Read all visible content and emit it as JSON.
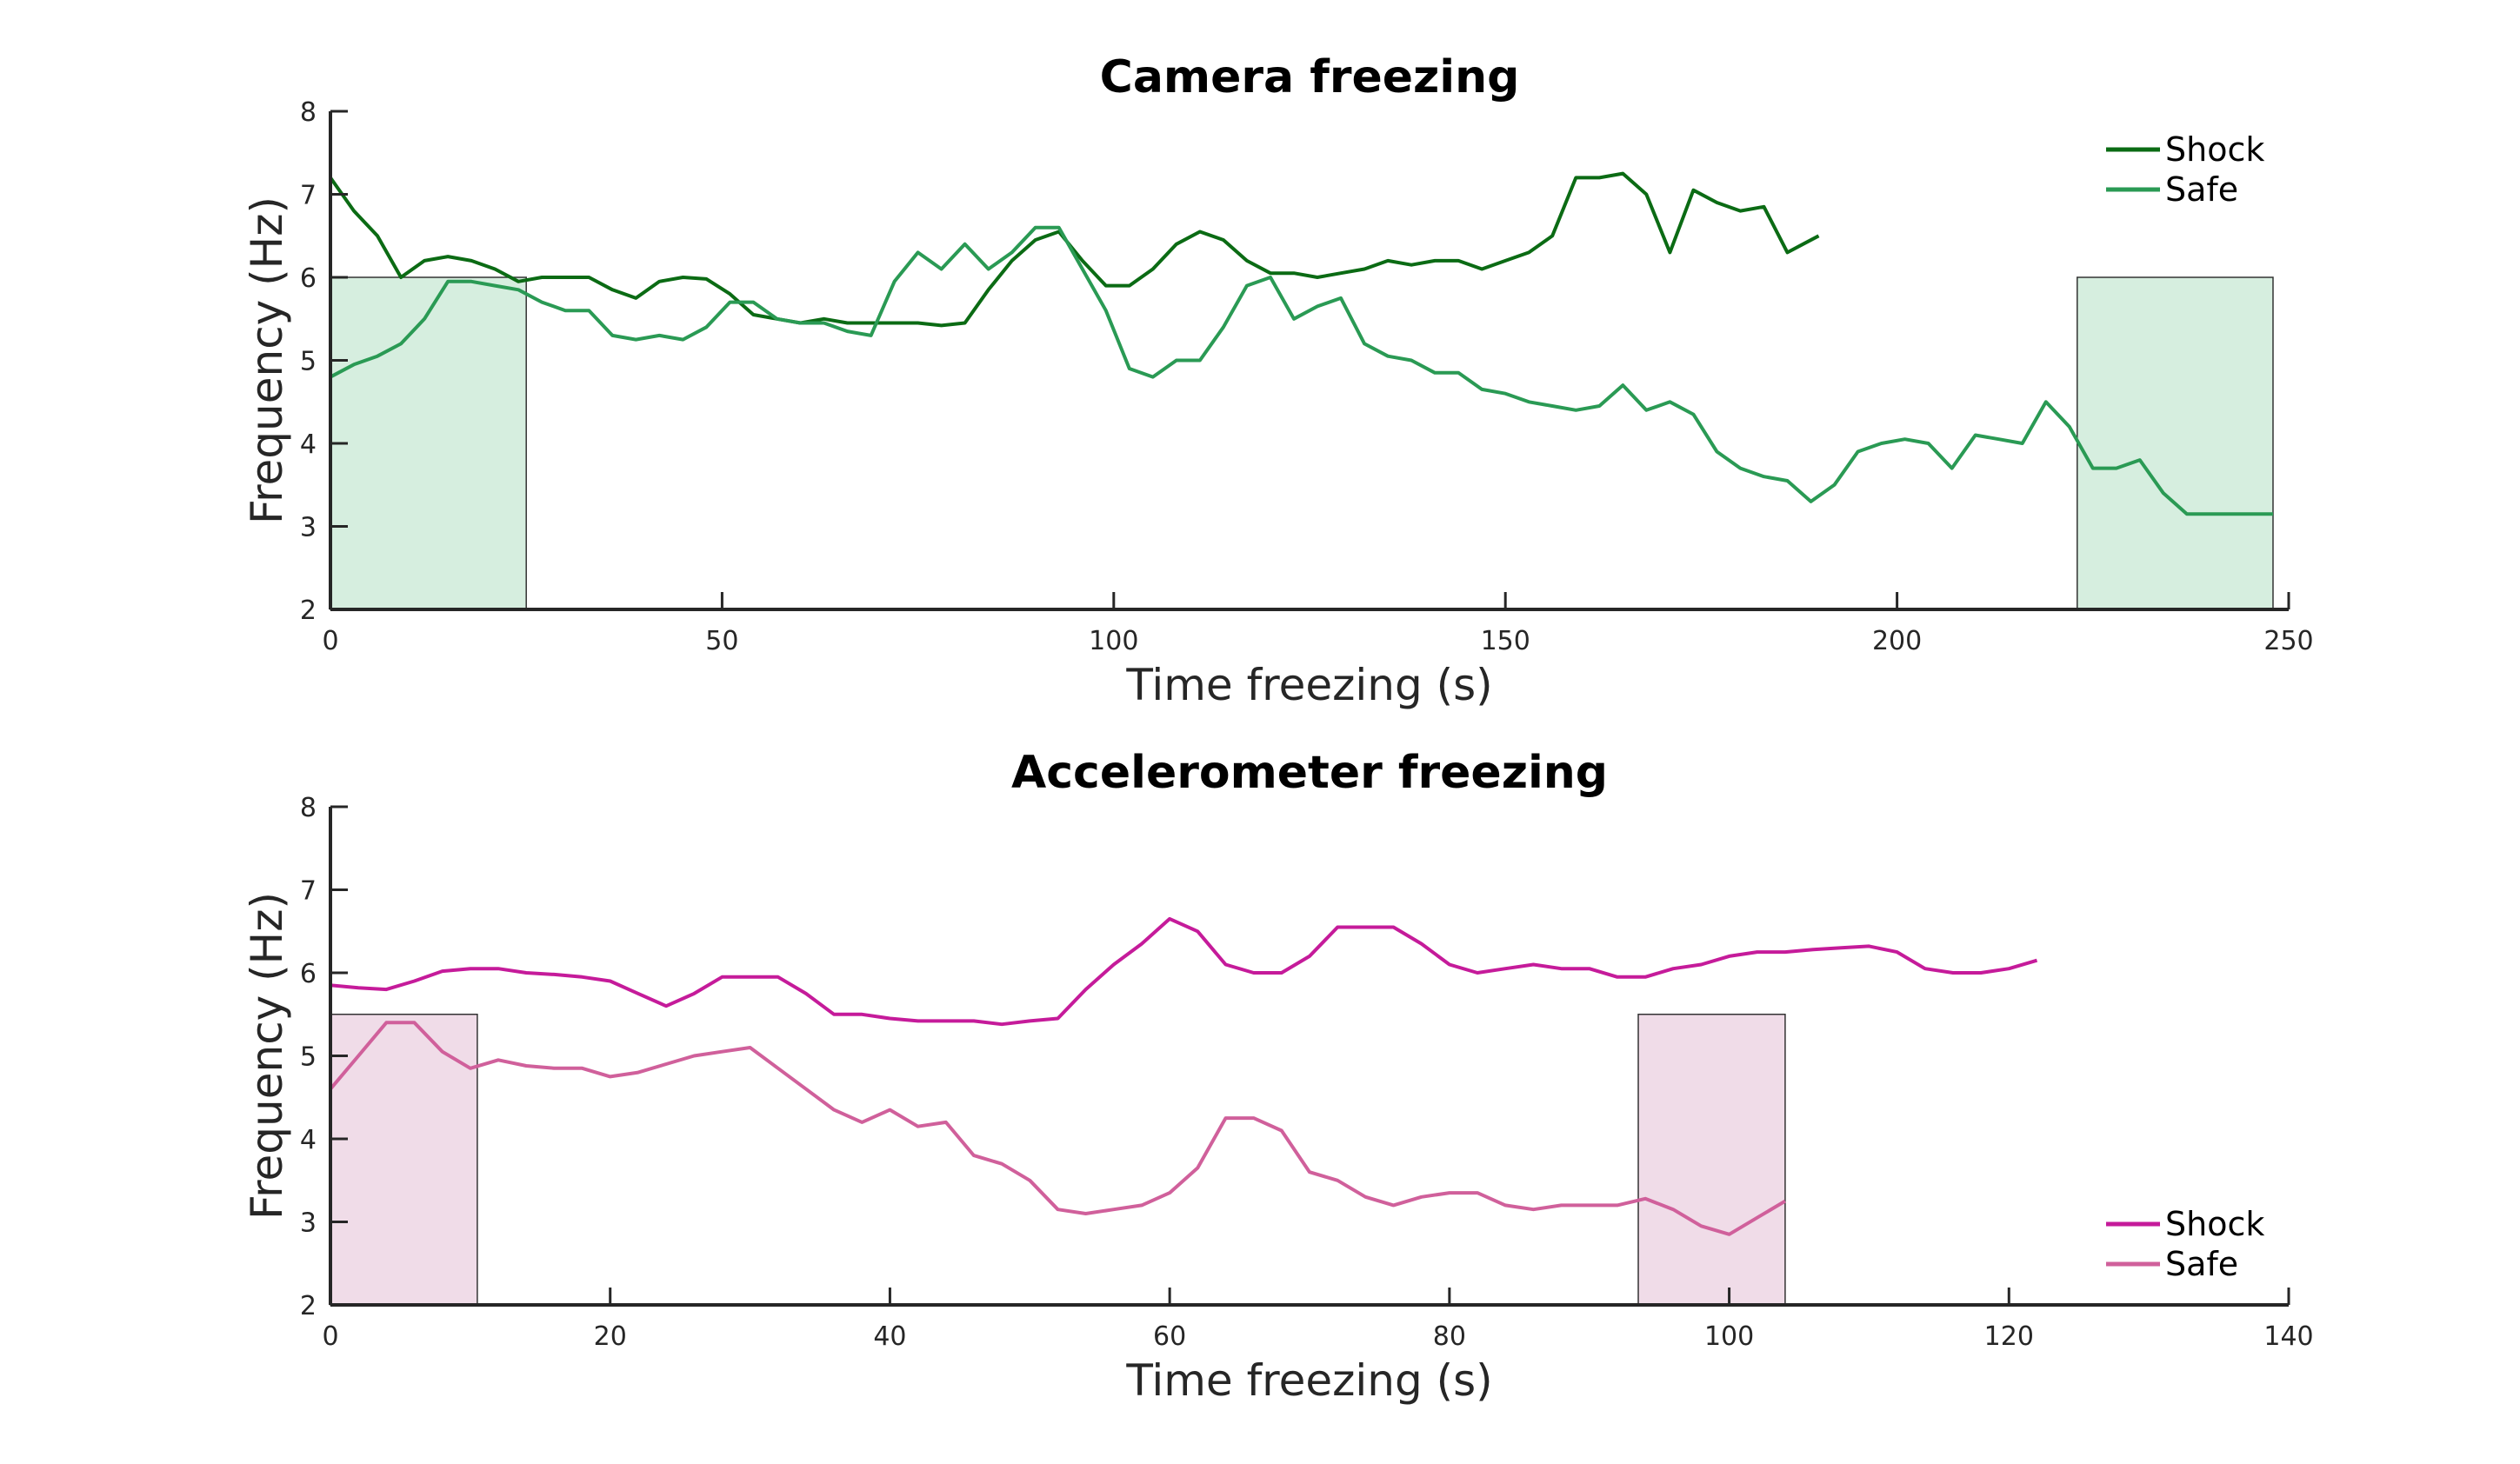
{
  "chart_data": [
    {
      "type": "line",
      "title": "Camera freezing",
      "xlabel": "Time freezing (s)",
      "ylabel": "Frequency (Hz)",
      "xlim": [
        0,
        250
      ],
      "ylim": [
        2,
        8
      ],
      "xticks": [
        0,
        50,
        100,
        150,
        200,
        250
      ],
      "yticks": [
        2,
        3,
        4,
        5,
        6,
        7,
        8
      ],
      "legend_position": "top-right",
      "grid": false,
      "shaded_regions": [
        {
          "x0": 0,
          "x1": 25,
          "y0": 2,
          "y1": 6,
          "color": "#d6eedf"
        },
        {
          "x0": 223,
          "x1": 248,
          "y0": 2,
          "y1": 6,
          "color": "#d6eedf"
        }
      ],
      "series": [
        {
          "name": "Shock",
          "color": "#0b6b14",
          "x": [
            0,
            3,
            6,
            9,
            12,
            15,
            18,
            21,
            24,
            27,
            30,
            33,
            36,
            39,
            42,
            45,
            48,
            51,
            54,
            57,
            60,
            63,
            66,
            69,
            72,
            75,
            78,
            81,
            84,
            87,
            90,
            93,
            96,
            99,
            102,
            105,
            108,
            111,
            114,
            117,
            120,
            123,
            126,
            129,
            132,
            135,
            138,
            141,
            144,
            147,
            150,
            153,
            156,
            159,
            162,
            165,
            168,
            171,
            174,
            177,
            180,
            183,
            186,
            188,
            190
          ],
          "y": [
            7.2,
            6.8,
            6.5,
            6.0,
            6.2,
            6.25,
            6.2,
            6.1,
            5.95,
            6.0,
            6.0,
            6.0,
            5.85,
            5.75,
            5.95,
            6.0,
            5.98,
            5.8,
            5.55,
            5.5,
            5.45,
            5.5,
            5.45,
            5.45,
            5.45,
            5.45,
            5.42,
            5.45,
            5.85,
            6.2,
            6.45,
            6.55,
            6.2,
            5.9,
            5.9,
            6.1,
            6.4,
            6.55,
            6.45,
            6.2,
            6.05,
            6.05,
            6.0,
            6.05,
            6.1,
            6.2,
            6.15,
            6.2,
            6.2,
            6.1,
            6.2,
            6.3,
            6.5,
            7.2,
            7.2,
            7.25,
            7.0,
            6.3,
            7.05,
            6.9,
            6.8,
            6.85,
            6.3,
            6.4,
            6.5
          ]
        },
        {
          "name": "Safe",
          "color": "#2a9a54",
          "x": [
            0,
            3,
            6,
            9,
            12,
            15,
            18,
            21,
            24,
            27,
            30,
            33,
            36,
            39,
            42,
            45,
            48,
            51,
            54,
            57,
            60,
            63,
            66,
            69,
            72,
            75,
            78,
            81,
            84,
            87,
            90,
            93,
            96,
            99,
            102,
            105,
            108,
            111,
            114,
            117,
            120,
            123,
            126,
            129,
            132,
            135,
            138,
            141,
            144,
            147,
            150,
            153,
            156,
            159,
            162,
            165,
            168,
            171,
            174,
            177,
            180,
            183,
            186,
            189,
            192,
            195,
            198,
            201,
            204,
            207,
            210,
            213,
            216,
            219,
            222,
            225,
            228,
            231,
            234,
            237,
            240,
            243,
            246,
            248
          ],
          "y": [
            4.8,
            4.95,
            5.05,
            5.2,
            5.5,
            5.95,
            5.95,
            5.9,
            5.85,
            5.7,
            5.6,
            5.6,
            5.3,
            5.25,
            5.3,
            5.25,
            5.4,
            5.7,
            5.7,
            5.5,
            5.45,
            5.45,
            5.35,
            5.3,
            5.95,
            6.3,
            6.1,
            6.4,
            6.1,
            6.3,
            6.6,
            6.6,
            6.1,
            5.6,
            4.9,
            4.8,
            5.0,
            5.0,
            5.4,
            5.9,
            6.0,
            5.5,
            5.65,
            5.75,
            5.2,
            5.05,
            5.0,
            4.85,
            4.85,
            4.65,
            4.6,
            4.5,
            4.45,
            4.4,
            4.45,
            4.7,
            4.4,
            4.5,
            4.35,
            3.9,
            3.7,
            3.6,
            3.55,
            3.3,
            3.5,
            3.9,
            4.0,
            4.05,
            4.0,
            3.7,
            4.1,
            4.05,
            4.0,
            4.5,
            4.2,
            3.7,
            3.7,
            3.8,
            3.4,
            3.15,
            3.15,
            3.15,
            3.15,
            3.15
          ]
        }
      ]
    },
    {
      "type": "line",
      "title": "Accelerometer freezing",
      "xlabel": "Time freezing (s)",
      "ylabel": "Frequency (Hz)",
      "xlim": [
        0,
        140
      ],
      "ylim": [
        2,
        8
      ],
      "xticks": [
        0,
        20,
        40,
        60,
        80,
        100,
        120,
        140
      ],
      "yticks": [
        2,
        3,
        4,
        5,
        6,
        7,
        8
      ],
      "legend_position": "bottom-right",
      "grid": false,
      "shaded_regions": [
        {
          "x0": 0,
          "x1": 10.5,
          "y0": 2,
          "y1": 5.5,
          "color": "#f0dce8"
        },
        {
          "x0": 93.5,
          "x1": 104,
          "y0": 2,
          "y1": 5.5,
          "color": "#f0dce8"
        }
      ],
      "series": [
        {
          "name": "Shock",
          "color": "#c51b9a",
          "x": [
            0,
            2,
            4,
            6,
            8,
            10,
            12,
            14,
            16,
            18,
            20,
            22,
            24,
            26,
            28,
            30,
            32,
            34,
            36,
            38,
            40,
            42,
            44,
            46,
            48,
            50,
            52,
            54,
            56,
            58,
            60,
            62,
            64,
            66,
            68,
            70,
            72,
            74,
            76,
            78,
            80,
            82,
            84,
            86,
            88,
            90,
            92,
            94,
            96,
            98,
            100,
            102,
            104,
            106,
            108,
            110,
            112,
            114,
            116,
            118,
            120,
            122
          ],
          "y": [
            5.85,
            5.82,
            5.8,
            5.9,
            6.02,
            6.05,
            6.05,
            6.0,
            5.98,
            5.95,
            5.9,
            5.75,
            5.6,
            5.75,
            5.95,
            5.95,
            5.95,
            5.75,
            5.5,
            5.5,
            5.45,
            5.42,
            5.42,
            5.42,
            5.38,
            5.42,
            5.45,
            5.8,
            6.1,
            6.35,
            6.65,
            6.5,
            6.1,
            6.0,
            6.0,
            6.2,
            6.55,
            6.55,
            6.55,
            6.35,
            6.1,
            6.0,
            6.05,
            6.1,
            6.05,
            6.05,
            5.95,
            5.95,
            6.05,
            6.1,
            6.2,
            6.25,
            6.25,
            6.28,
            6.3,
            6.32,
            6.25,
            6.05,
            6.0,
            6.0,
            6.05,
            6.15
          ]
        },
        {
          "name": "Safe",
          "color": "#d0609b",
          "x": [
            0,
            2,
            4,
            6,
            8,
            10,
            12,
            14,
            16,
            18,
            20,
            22,
            24,
            26,
            28,
            30,
            32,
            34,
            36,
            38,
            40,
            42,
            44,
            46,
            48,
            50,
            52,
            54,
            56,
            58,
            60,
            62,
            64,
            66,
            68,
            70,
            72,
            74,
            76,
            78,
            80,
            82,
            84,
            86,
            88,
            90,
            92,
            94,
            96,
            98,
            100,
            102,
            104
          ],
          "y": [
            4.6,
            5.0,
            5.4,
            5.4,
            5.05,
            4.85,
            4.95,
            4.88,
            4.85,
            4.85,
            4.75,
            4.8,
            4.9,
            5.0,
            5.05,
            5.1,
            4.85,
            4.6,
            4.35,
            4.2,
            4.35,
            4.15,
            4.2,
            3.8,
            3.7,
            3.5,
            3.15,
            3.1,
            3.15,
            3.2,
            3.35,
            3.65,
            4.25,
            4.25,
            4.1,
            3.6,
            3.5,
            3.3,
            3.2,
            3.3,
            3.35,
            3.35,
            3.2,
            3.15,
            3.2,
            3.2,
            3.2,
            3.28,
            3.15,
            2.95,
            2.85,
            3.05,
            3.25
          ]
        }
      ]
    }
  ]
}
